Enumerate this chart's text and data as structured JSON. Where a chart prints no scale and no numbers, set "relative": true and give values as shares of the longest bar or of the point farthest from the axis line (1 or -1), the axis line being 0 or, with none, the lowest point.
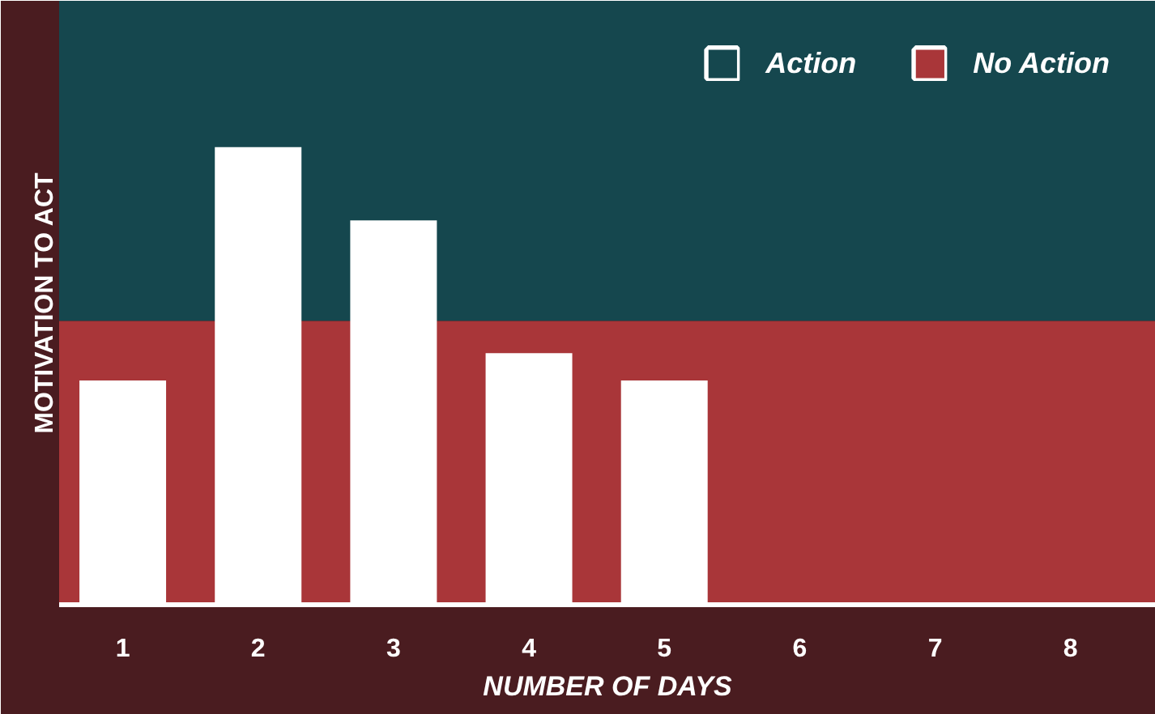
{
  "chart_data": {
    "type": "bar",
    "categories": [
      "1",
      "2",
      "3",
      "4",
      "5",
      "6",
      "7",
      "8"
    ],
    "values": [
      0.49,
      1,
      0.84,
      0.55,
      0.49,
      null,
      null,
      null
    ],
    "color": "#ffffff",
    "relative": true,
    "xlabel": "NUMBER OF DAYS",
    "ylabel": "MOTIVATION TO ACT",
    "bands": [
      {
        "axis": "y",
        "from": 0.62,
        "to": 1.32,
        "label": "Action",
        "color": "#15474e"
      },
      {
        "axis": "y",
        "from": 0,
        "to": 0.62,
        "label": "No Action",
        "color": "#a93639"
      }
    ],
    "legend": "top right"
  }
}
